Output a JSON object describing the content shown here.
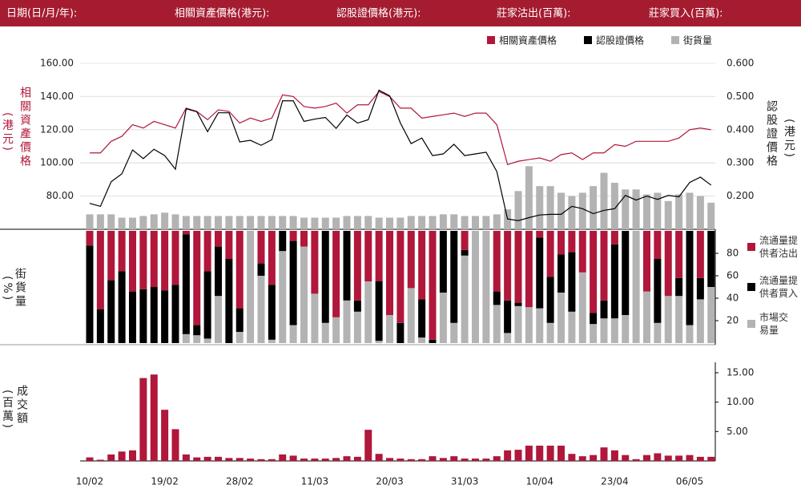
{
  "header": {
    "labels": [
      "日期(日/月/年):",
      "相關資產價格(港元):",
      "認股證價格(港元):",
      "莊家沽出(百萬):",
      "莊家買入(百萬):"
    ]
  },
  "chart_data": [
    {
      "type": "line",
      "ylabel": "相關資產價格",
      "ylabel_unit": "(港元)",
      "y2label": "認股證價格",
      "y2label_unit": "(港元)",
      "ylim": [
        60,
        160
      ],
      "yticks": [
        {
          "value": 80,
          "label": "80.00"
        },
        {
          "value": 100,
          "label": "100.00"
        },
        {
          "value": 120,
          "label": "120.00"
        },
        {
          "value": 140,
          "label": "140.00"
        },
        {
          "value": 160,
          "label": "160.00"
        }
      ],
      "y2lim": [
        0.1,
        0.6
      ],
      "y2ticks": [
        {
          "value": 0.2,
          "label": "0.200"
        },
        {
          "value": 0.3,
          "label": "0.300"
        },
        {
          "value": 0.4,
          "label": "0.400"
        },
        {
          "value": 0.5,
          "label": "0.500"
        },
        {
          "value": 0.6,
          "label": "0.600"
        }
      ],
      "y3lim": [
        0,
        100
      ],
      "grid": true,
      "series": [
        {
          "name": "相關資產價格",
          "color": "#b0173a",
          "values": [
            106,
            106,
            113,
            116,
            123,
            121,
            125,
            123,
            121,
            133,
            131,
            126,
            132,
            131,
            124,
            127,
            125,
            127,
            141,
            140,
            134,
            133,
            134,
            136,
            130,
            135,
            135,
            143,
            140,
            133,
            133,
            127,
            128,
            129,
            130,
            128,
            130,
            130,
            123,
            99,
            101,
            102,
            103,
            101,
            105,
            106,
            102,
            106,
            106,
            111,
            110,
            113,
            113,
            113,
            113,
            115,
            120,
            121,
            120
          ]
        },
        {
          "name": "認股證價格",
          "color": "#000000",
          "axis": "y2",
          "values": [
            0.178,
            0.169,
            0.243,
            0.267,
            0.339,
            0.313,
            0.341,
            0.322,
            0.281,
            0.463,
            0.454,
            0.394,
            0.451,
            0.451,
            0.363,
            0.368,
            0.353,
            0.37,
            0.487,
            0.487,
            0.425,
            0.432,
            0.437,
            0.404,
            0.444,
            0.42,
            0.43,
            0.519,
            0.502,
            0.42,
            0.358,
            0.375,
            0.322,
            0.327,
            0.356,
            0.322,
            0.327,
            0.332,
            0.274,
            0.131,
            0.126,
            0.135,
            0.143,
            0.145,
            0.145,
            0.169,
            0.162,
            0.147,
            0.157,
            0.162,
            0.202,
            0.188,
            0.2,
            0.19,
            0.202,
            0.198,
            0.241,
            0.257,
            0.233
          ]
        },
        {
          "name": "街貨量",
          "color": "#b3b3b3",
          "type": "bar",
          "axis": "y3",
          "values": [
            9,
            9,
            9,
            7,
            7,
            8,
            9,
            10,
            9,
            8,
            8,
            8,
            8,
            8,
            8,
            8,
            8,
            8,
            8,
            8,
            7,
            7,
            7,
            7,
            8,
            8,
            8,
            7,
            7,
            7,
            8,
            8,
            8,
            9,
            9,
            8,
            8,
            8,
            9,
            12,
            23,
            38,
            26,
            26,
            22,
            20,
            22,
            26,
            34,
            28,
            24,
            24,
            21,
            22,
            17,
            21,
            22,
            20,
            16
          ]
        }
      ]
    },
    {
      "type": "stacked_bar",
      "ylabel": "街貨量",
      "ylabel_unit": "(%)",
      "ylim": [
        0,
        100
      ],
      "yticks": [
        20,
        40,
        60,
        80
      ],
      "series": [
        {
          "name": "市場交易量",
          "color": "#b3b3b3",
          "values": [
            0,
            0,
            0,
            0,
            0,
            0,
            0,
            0,
            0,
            8,
            7,
            4,
            42,
            0,
            10,
            100,
            60,
            3,
            82,
            16,
            86,
            44,
            18,
            23,
            38,
            28,
            55,
            2,
            25,
            0,
            49,
            5,
            0,
            45,
            18,
            78,
            100,
            100,
            34,
            9,
            33,
            32,
            31,
            18,
            45,
            28,
            63,
            17,
            22,
            22,
            25,
            100,
            46,
            18,
            42,
            42,
            16,
            39,
            50
          ]
        },
        {
          "name": "流通量提供者買入",
          "color": "#000000",
          "values": [
            87,
            30,
            56,
            64,
            46,
            48,
            50,
            47,
            52,
            89,
            9,
            60,
            44,
            75,
            21,
            0,
            11,
            49,
            18,
            75,
            0,
            0,
            82,
            0,
            62,
            10,
            0,
            53,
            0,
            18,
            0,
            34,
            3,
            55,
            82,
            5,
            0,
            0,
            12,
            29,
            3,
            0,
            63,
            41,
            34,
            53,
            0,
            10,
            16,
            66,
            75,
            0,
            0,
            57,
            0,
            16,
            84,
            19,
            50
          ]
        },
        {
          "name": "流通量提供者沽出",
          "color": "#b0173a",
          "values": [
            13,
            70,
            44,
            36,
            54,
            52,
            50,
            53,
            48,
            3,
            84,
            36,
            14,
            25,
            69,
            0,
            29,
            48,
            0,
            9,
            14,
            56,
            0,
            77,
            0,
            62,
            45,
            45,
            75,
            82,
            51,
            61,
            97,
            0,
            0,
            17,
            0,
            0,
            54,
            62,
            64,
            68,
            6,
            41,
            21,
            19,
            37,
            73,
            62,
            12,
            0,
            0,
            54,
            25,
            58,
            42,
            0,
            42,
            0
          ]
        }
      ]
    },
    {
      "type": "bar",
      "ylabel": "成交額",
      "ylabel_unit": "(百萬)",
      "categories": [
        "10/02",
        null,
        null,
        null,
        null,
        null,
        null,
        "19/02",
        null,
        null,
        null,
        null,
        null,
        null,
        "28/02",
        null,
        null,
        null,
        null,
        null,
        null,
        "11/03",
        null,
        null,
        null,
        null,
        null,
        null,
        "20/03",
        null,
        null,
        null,
        null,
        null,
        null,
        "31/03",
        null,
        null,
        null,
        null,
        null,
        null,
        "10/04",
        null,
        null,
        null,
        null,
        null,
        null,
        "23/04",
        null,
        null,
        null,
        null,
        null,
        null,
        "06/05",
        null,
        null
      ],
      "values": [
        0.6,
        0.2,
        1.1,
        1.6,
        1.8,
        14.1,
        14.7,
        8.7,
        5.4,
        1.1,
        0.6,
        0.7,
        0.7,
        0.5,
        0.5,
        0.4,
        0.3,
        0.3,
        1.1,
        0.9,
        0.4,
        0.4,
        0.4,
        0.5,
        0.8,
        0.7,
        5.3,
        1.2,
        0.5,
        0.4,
        0.3,
        0.3,
        0.8,
        0.5,
        0.8,
        0.4,
        0.4,
        0.4,
        0.8,
        1.8,
        1.9,
        2.6,
        2.6,
        2.6,
        2.6,
        1.2,
        0.8,
        1.0,
        2.3,
        1.8,
        1.0,
        0.3,
        1.0,
        1.3,
        0.9,
        0.9,
        1.0,
        0.7,
        0.7
      ],
      "color": "#b0173a",
      "ylim": [
        0,
        16.5
      ],
      "yticks": [
        {
          "value": 5,
          "label": "5.00"
        },
        {
          "value": 10,
          "label": "10.00"
        },
        {
          "value": 15,
          "label": "15.00"
        }
      ]
    }
  ]
}
